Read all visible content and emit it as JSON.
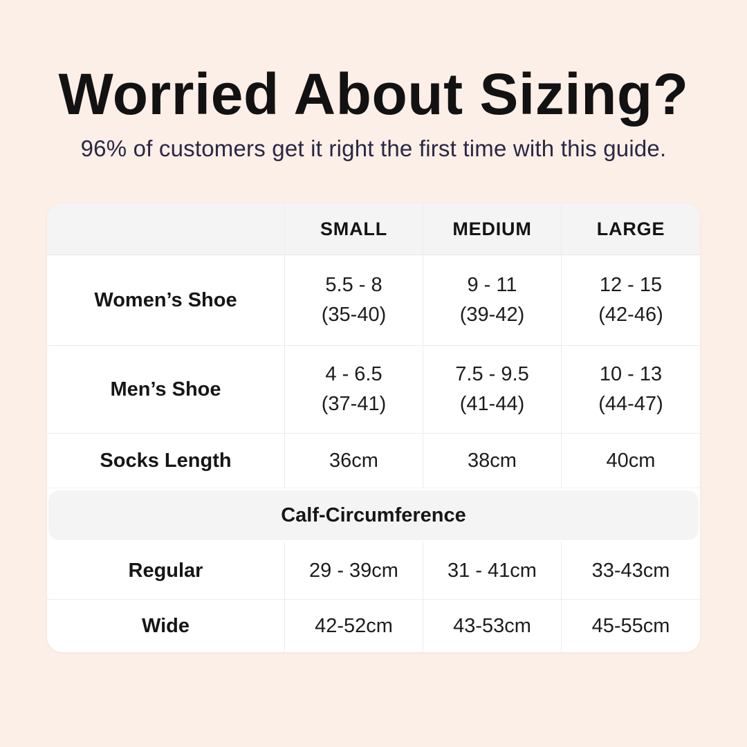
{
  "page": {
    "title": "Worried About Sizing?",
    "subtitle": "96% of customers get it right the first time with this guide."
  },
  "colors": {
    "background": "#fcefe7",
    "table_background": "#ffffff",
    "header_band_gray": "#f4f4f4",
    "border": "#ececec",
    "title_text": "#121212",
    "subtitle_text": "#2a2745",
    "table_text": "#1c1c1c"
  },
  "table": {
    "header": {
      "col1": "SMALL",
      "col2": "MEDIUM",
      "col3": "LARGE"
    },
    "rows": [
      {
        "label": "Women’s Shoe",
        "cells": [
          {
            "main": "5.5 - 8",
            "sub": "(35-40)"
          },
          {
            "main": "9 - 11",
            "sub": "(39-42)"
          },
          {
            "main": "12 - 15",
            "sub": "(42-46)"
          }
        ]
      },
      {
        "label": "Men’s Shoe",
        "cells": [
          {
            "main": "4 - 6.5",
            "sub": "(37-41)"
          },
          {
            "main": "7.5 - 9.5",
            "sub": "(41-44)"
          },
          {
            "main": "10 - 13",
            "sub": "(44-47)"
          }
        ]
      },
      {
        "label": "Socks Length",
        "cells": [
          {
            "main": "36cm"
          },
          {
            "main": "38cm"
          },
          {
            "main": "40cm"
          }
        ]
      }
    ],
    "section_header": "Calf-Circumference",
    "calf_rows": [
      {
        "label": "Regular",
        "cells": [
          {
            "main": "29 - 39cm"
          },
          {
            "main": "31 - 41cm"
          },
          {
            "main": "33-43cm"
          }
        ]
      },
      {
        "label": "Wide",
        "cells": [
          {
            "main": "42-52cm"
          },
          {
            "main": "43-53cm"
          },
          {
            "main": "45-55cm"
          }
        ]
      }
    ]
  },
  "chart_data": {
    "type": "table",
    "title": "Worried About Sizing?",
    "subtitle": "96% of customers get it right the first time with this guide.",
    "columns": [
      "",
      "SMALL",
      "MEDIUM",
      "LARGE"
    ],
    "rows": [
      [
        "Women’s Shoe",
        "5.5 - 8 (35-40)",
        "9 - 11 (39-42)",
        "12 - 15 (42-46)"
      ],
      [
        "Men’s Shoe",
        "4 - 6.5 (37-41)",
        "7.5 - 9.5 (41-44)",
        "10 - 13 (44-47)"
      ],
      [
        "Socks Length",
        "36cm",
        "38cm",
        "40cm"
      ],
      [
        "Calf-Circumference",
        "",
        "",
        ""
      ],
      [
        "Regular",
        "29 - 39cm",
        "31 - 41cm",
        "33-43cm"
      ],
      [
        "Wide",
        "42-52cm",
        "43-53cm",
        "45-55cm"
      ]
    ],
    "layout": {
      "header_row_shaded": true,
      "section_band_shaded": true,
      "grid": true
    }
  }
}
